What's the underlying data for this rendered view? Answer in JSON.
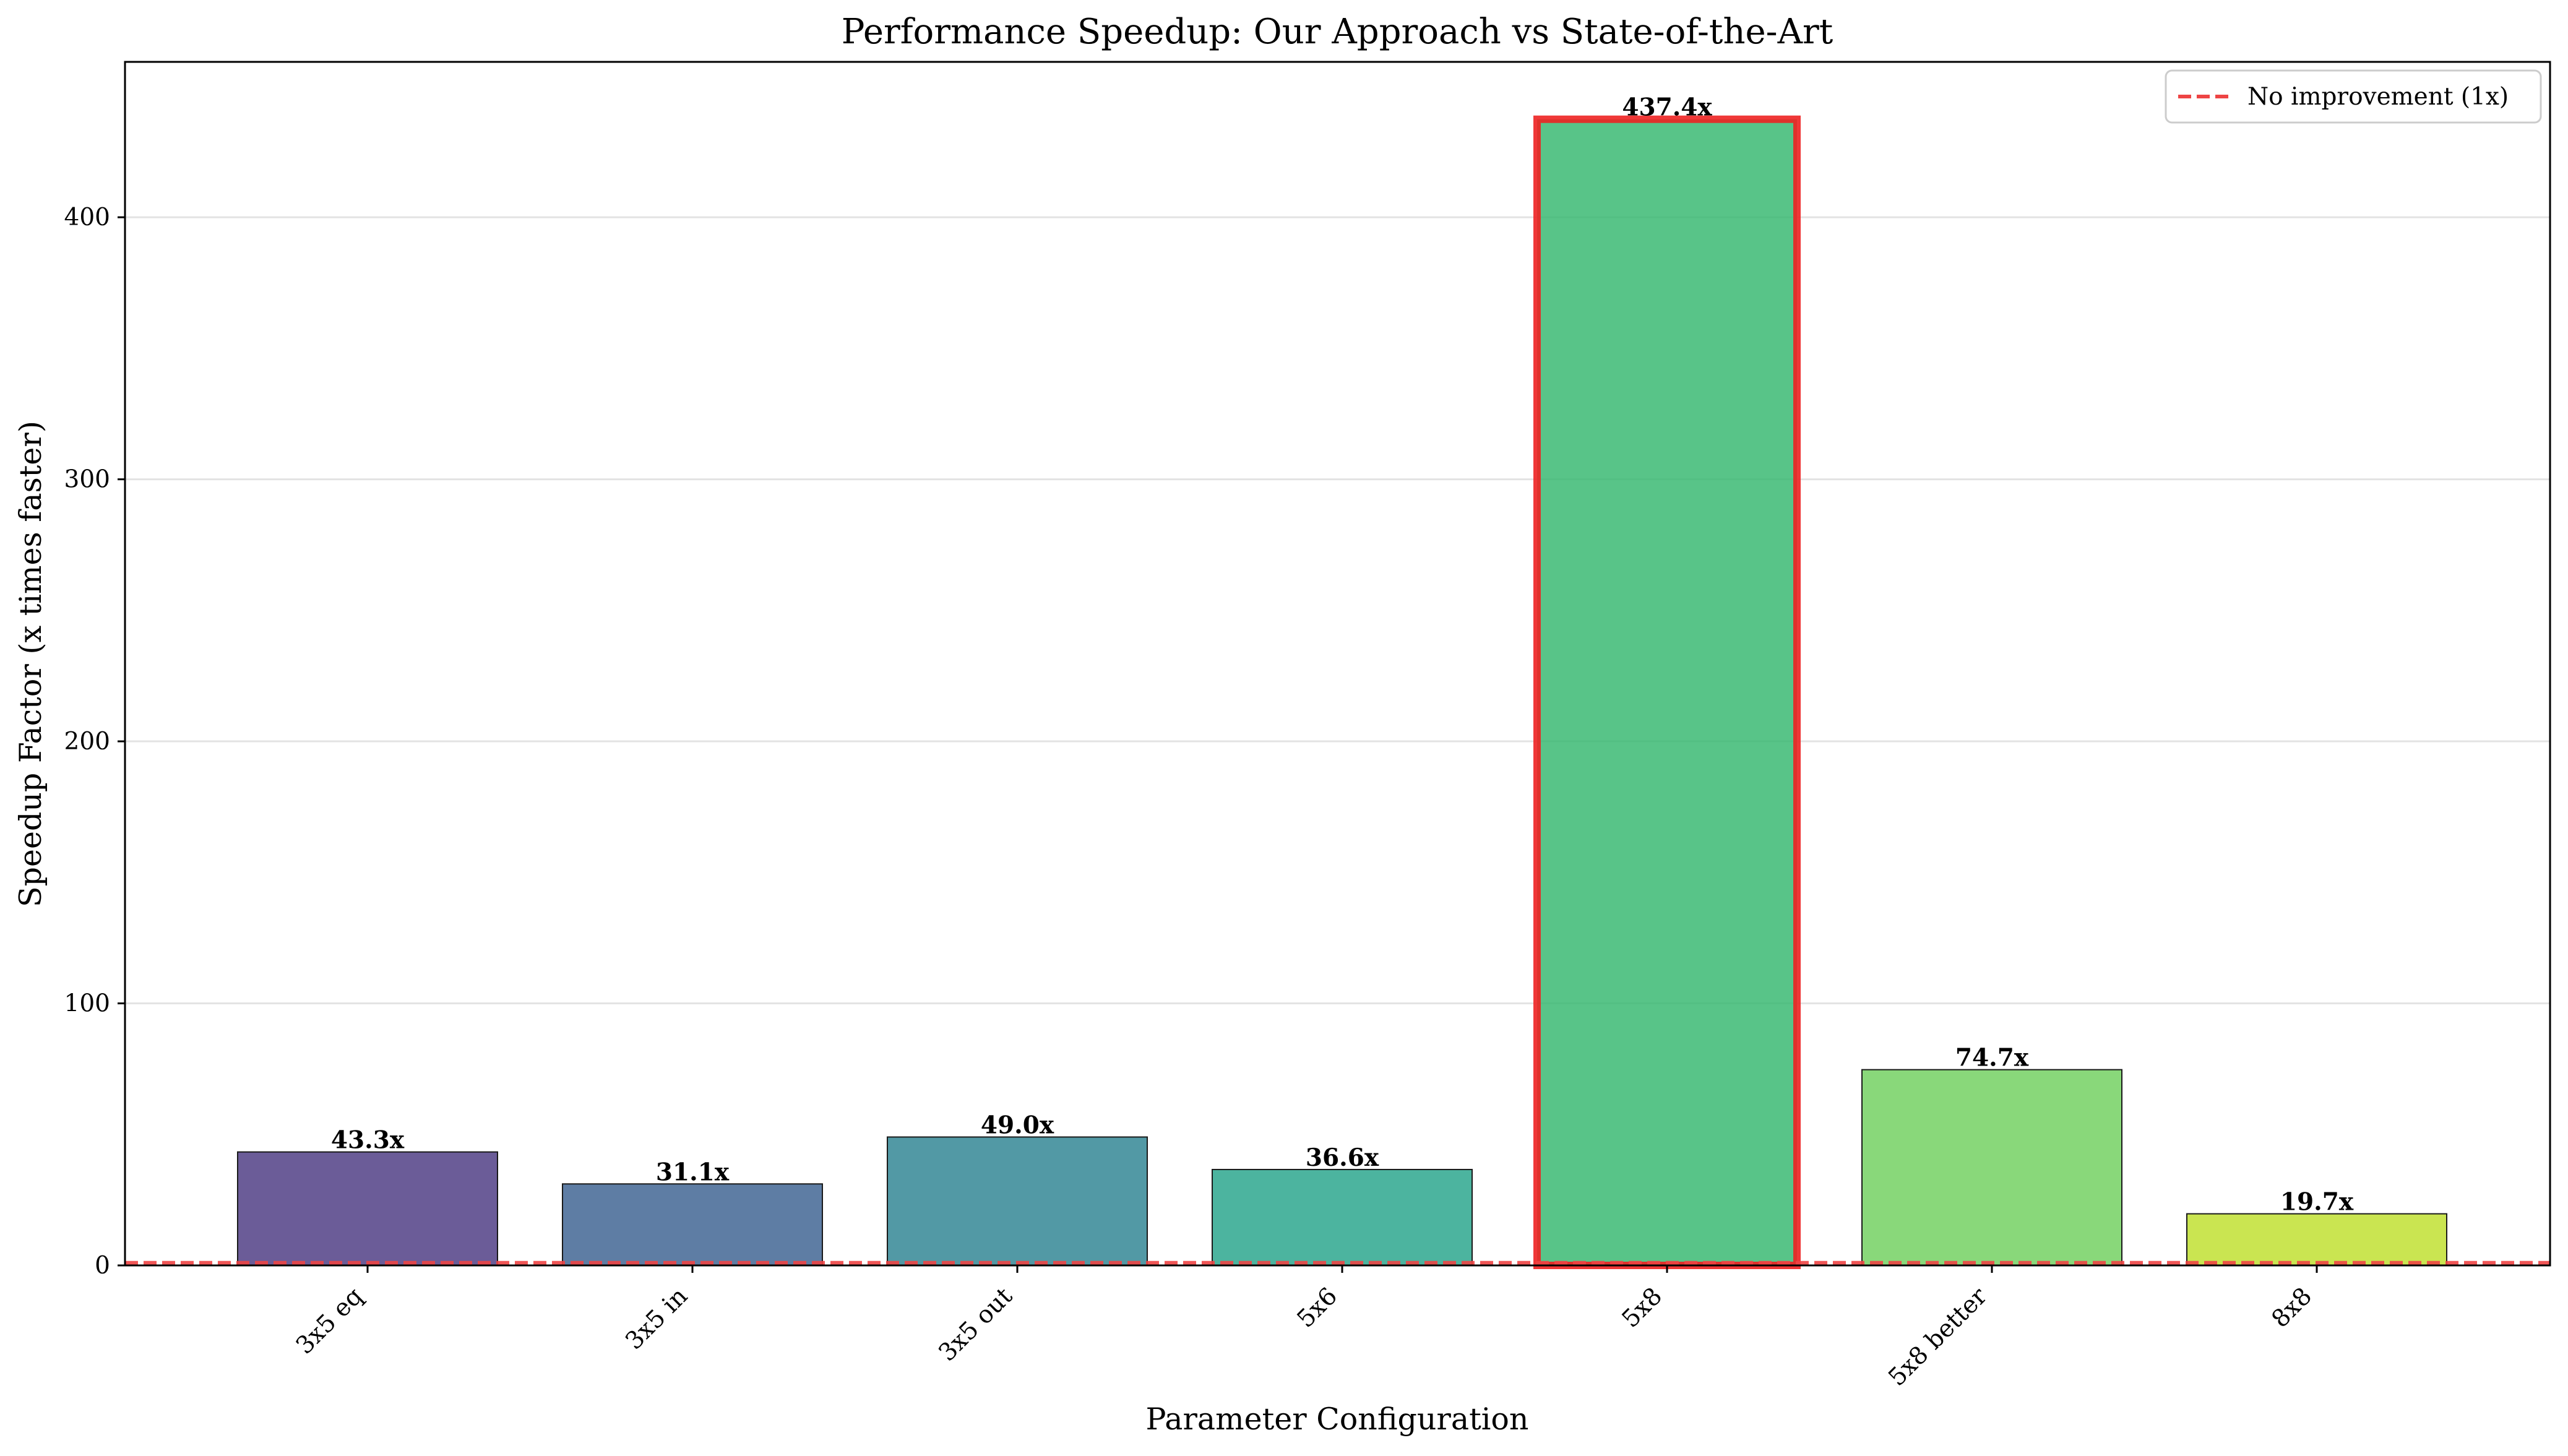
{
  "chart_data": {
    "type": "bar",
    "title": "Performance Speedup: Our Approach vs State-of-the-Art",
    "xlabel": "Parameter Configuration",
    "ylabel": "Speedup Factor (x times faster)",
    "categories": [
      "3x5 eq",
      "3x5 in",
      "3x5 out",
      "5x6",
      "5x8",
      "5x8 better",
      "8x8"
    ],
    "values": [
      43.3,
      31.1,
      49.0,
      36.6,
      437.4,
      74.7,
      19.7
    ],
    "data_labels": [
      "43.3x",
      "31.1x",
      "49.0x",
      "36.6x",
      "437.4x",
      "74.7x",
      "19.7x"
    ],
    "colors": [
      "#46337e",
      "#365c8d",
      "#277f8e",
      "#1fa187",
      "#2eb56a",
      "#6cce59",
      "#bddf26"
    ],
    "highlighted_category": "5x8",
    "highlight_color": "#ee2222",
    "ylim": [
      0,
      459.3
    ],
    "yticks": [
      0,
      100,
      200,
      300,
      400
    ],
    "grid": true,
    "reference_line": {
      "value": 1,
      "label": "No improvement (1x)",
      "color": "#ee4444",
      "style": "dashed"
    },
    "legend": {
      "position": "top-right",
      "entries": [
        "No improvement (1x)"
      ]
    }
  }
}
